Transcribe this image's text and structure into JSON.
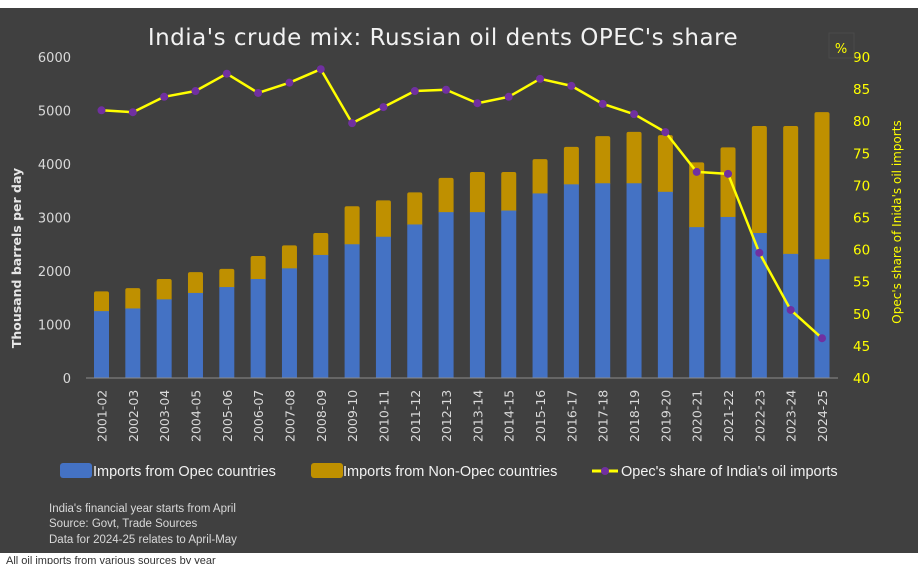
{
  "chart_data": {
    "type": "bar",
    "subtype": "stacked_bar_with_line_secondary_axis",
    "title": "India's crude mix: Russian oil dents OPEC's share",
    "xlabel": "",
    "ylabel": "Thousand barrels per day",
    "ylabel_right": "Opec's share of Inida's oil imports",
    "right_axis_unit": "%",
    "ylim": [
      0,
      6000
    ],
    "yticks": [
      0,
      1000,
      2000,
      3000,
      4000,
      5000,
      6000
    ],
    "ylim_right": [
      40,
      90
    ],
    "yticks_right": [
      40,
      45,
      50,
      55,
      60,
      65,
      70,
      75,
      80,
      85,
      90
    ],
    "grid": false,
    "legend_position": "bottom",
    "categories": [
      "2001-02",
      "2002-03",
      "2003-04",
      "2004-05",
      "2005-06",
      "2006-07",
      "2007-08",
      "2008-09",
      "2009-10",
      "2010-11",
      "2011-12",
      "2012-13",
      "2013-14",
      "2014-15",
      "2015-16",
      "2016-17",
      "2017-18",
      "2018-19",
      "2019-20",
      "2020-21",
      "2021-22",
      "2022-23",
      "2023-24",
      "2024-25"
    ],
    "series": [
      {
        "name": "Imports from Opec countries",
        "type": "bar",
        "axis": "left",
        "color": "#4472C4",
        "values": [
          1250,
          1300,
          1470,
          1590,
          1700,
          1850,
          2050,
          2300,
          2500,
          2640,
          2870,
          3100,
          3100,
          3130,
          3450,
          3620,
          3640,
          3640,
          3480,
          2820,
          3010,
          2710,
          2320,
          2220
        ]
      },
      {
        "name": "Imports from Non-Opec countries",
        "type": "bar",
        "axis": "left",
        "color": "#BF9000",
        "values": [
          370,
          380,
          380,
          390,
          340,
          430,
          430,
          410,
          710,
          680,
          600,
          640,
          750,
          720,
          640,
          700,
          880,
          960,
          1060,
          1210,
          1300,
          2000,
          2390,
          2750
        ]
      },
      {
        "name": "Opec's share of India's oil imports",
        "type": "line",
        "axis": "right",
        "color": "#FFFF00",
        "marker_color": "#7030A0",
        "values": [
          81.7,
          81.4,
          83.8,
          84.7,
          87.4,
          84.4,
          86.0,
          88.1,
          79.7,
          82.2,
          84.7,
          84.9,
          82.8,
          83.8,
          86.6,
          85.5,
          82.7,
          81.1,
          78.3,
          72.1,
          71.8,
          59.5,
          50.6,
          46.2
        ]
      }
    ]
  },
  "notes": [
    "India's financial year starts from April",
    "Source: Govt, Trade Sources",
    "Data for 2024-25 relates to April-May"
  ],
  "colors": {
    "background": "#404040",
    "opec": "#4472C4",
    "non_opec": "#BF9000",
    "line": "#FFFF00",
    "marker": "#7030A0"
  },
  "page_cutoff_text": "All oil imports from various sources by year"
}
